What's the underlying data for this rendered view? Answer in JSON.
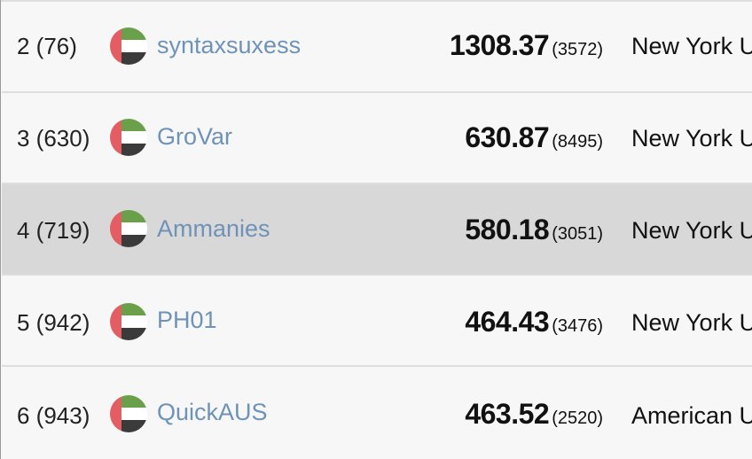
{
  "rows": [
    {
      "rank": "2 (76)",
      "name": "syntaxsuxess",
      "score": "1308.37",
      "count": "(3572)",
      "region": "New York U"
    },
    {
      "rank": "3 (630)",
      "name": "GroVar",
      "score": "630.87",
      "count": "(8495)",
      "region": "New York U"
    },
    {
      "rank": "4 (719)",
      "name": "Ammanies",
      "score": "580.18",
      "count": "(3051)",
      "region": "New York U"
    },
    {
      "rank": "5 (942)",
      "name": "PH01",
      "score": "464.43",
      "count": "(3476)",
      "region": "New York U"
    },
    {
      "rank": "6 (943)",
      "name": "QuickAUS",
      "score": "463.52",
      "count": "(2520)",
      "region": "American U"
    }
  ],
  "flag": {
    "icon": "uae-flag-icon",
    "colors": {
      "red": "#e35d63",
      "green": "#6ba04a",
      "white": "#ffffff",
      "black": "#3b3b3b"
    }
  },
  "colors": {
    "link": "#6f93b8",
    "row_bg": "#f7f7f7",
    "row_highlight_bg": "#d8d8d8",
    "divider": "#dedede"
  }
}
